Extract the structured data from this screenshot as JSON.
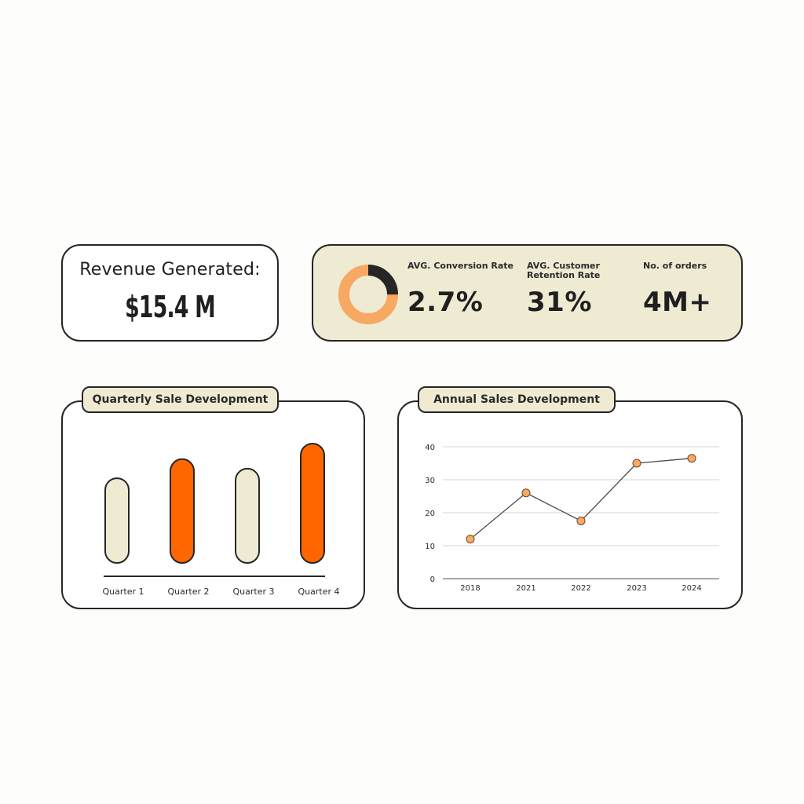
{
  "revenue": {
    "title": "Revenue Generated:",
    "value": "$15.4 M"
  },
  "kpis": {
    "donut": {
      "value_fraction": 0.25,
      "colors": {
        "filled": "#262626",
        "rest": "#f7a863"
      }
    },
    "conversion": {
      "label_line1": "AVG. Conversion Rate",
      "label_line2": "",
      "value": "2.7%"
    },
    "retention": {
      "label_line1": "AVG. Customer",
      "label_line2": "Retention  Rate",
      "value": "31%"
    },
    "orders": {
      "label_line1": "No. of orders",
      "label_line2": "",
      "value": "4M+"
    }
  },
  "quarterly": {
    "title": "Quarterly Sale Development"
  },
  "annual": {
    "title": "Annual Sales Development"
  },
  "colors": {
    "accent": "#ff6600",
    "cream": "#efebd3",
    "ink": "#262626",
    "point": "#f7a863"
  },
  "chart_data": [
    {
      "type": "bar",
      "title": "Quarterly Sale Development",
      "categories": [
        "Quarter 1",
        "Quarter 2",
        "Quarter 3",
        "Quarter 4"
      ],
      "values": [
        0.71,
        0.87,
        0.79,
        1.0
      ],
      "highlight": [
        false,
        true,
        false,
        true
      ],
      "xlabel": "",
      "ylabel": ""
    },
    {
      "type": "line",
      "title": "Annual Sales Development",
      "x": [
        "2018",
        "2021",
        "2022",
        "2023",
        "2024"
      ],
      "values": [
        12,
        26,
        17.5,
        35,
        36.5
      ],
      "ylim": [
        0,
        40
      ],
      "yticks": [
        0,
        10,
        20,
        30,
        40
      ],
      "grid": true,
      "xlabel": "",
      "ylabel": ""
    }
  ]
}
